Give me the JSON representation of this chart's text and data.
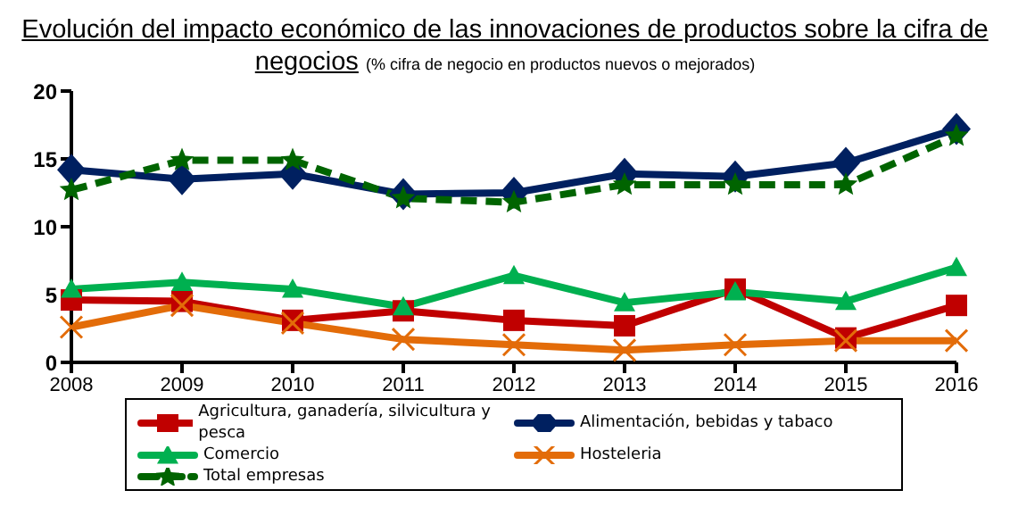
{
  "chart_data": {
    "type": "line",
    "title": "Evolución del impacto económico de las innovaciones de productos sobre la cifra de negocios",
    "subtitle": "(% cifra de negocio en productos nuevos o mejorados)",
    "categories": [
      "2008",
      "2009",
      "2010",
      "2011",
      "2012",
      "2013",
      "2014",
      "2015",
      "2016"
    ],
    "series": [
      {
        "name": "Agricultura, ganadería, silvicultura y pesca",
        "color": "#c00000",
        "marker": "square",
        "values": [
          4.6,
          4.5,
          3.1,
          3.8,
          3.1,
          2.7,
          5.4,
          1.8,
          4.2
        ]
      },
      {
        "name": "Alimentación, bebidas y tabaco",
        "color": "#002060",
        "marker": "diamond",
        "values": [
          14.2,
          13.5,
          13.9,
          12.4,
          12.5,
          13.9,
          13.7,
          14.7,
          17.2
        ]
      },
      {
        "name": "Comercio",
        "color": "#00b050",
        "marker": "triangle",
        "values": [
          5.4,
          5.9,
          5.4,
          4.1,
          6.4,
          4.4,
          5.2,
          4.5,
          7.0
        ]
      },
      {
        "name": "Hosteleria",
        "color": "#e36c09",
        "marker": "cross",
        "values": [
          2.6,
          4.2,
          2.9,
          1.7,
          1.3,
          0.9,
          1.3,
          1.6,
          1.6
        ]
      },
      {
        "name": "Total empresas",
        "color": "#006400",
        "marker": "star",
        "line_style": "dashed",
        "values": [
          12.7,
          14.9,
          14.9,
          12.1,
          11.8,
          13.1,
          13.1,
          13.1,
          16.7
        ]
      }
    ],
    "ylim": [
      0,
      20
    ],
    "yticks": [
      0,
      5,
      10,
      15,
      20
    ],
    "grid": false,
    "legend": "bottom"
  }
}
